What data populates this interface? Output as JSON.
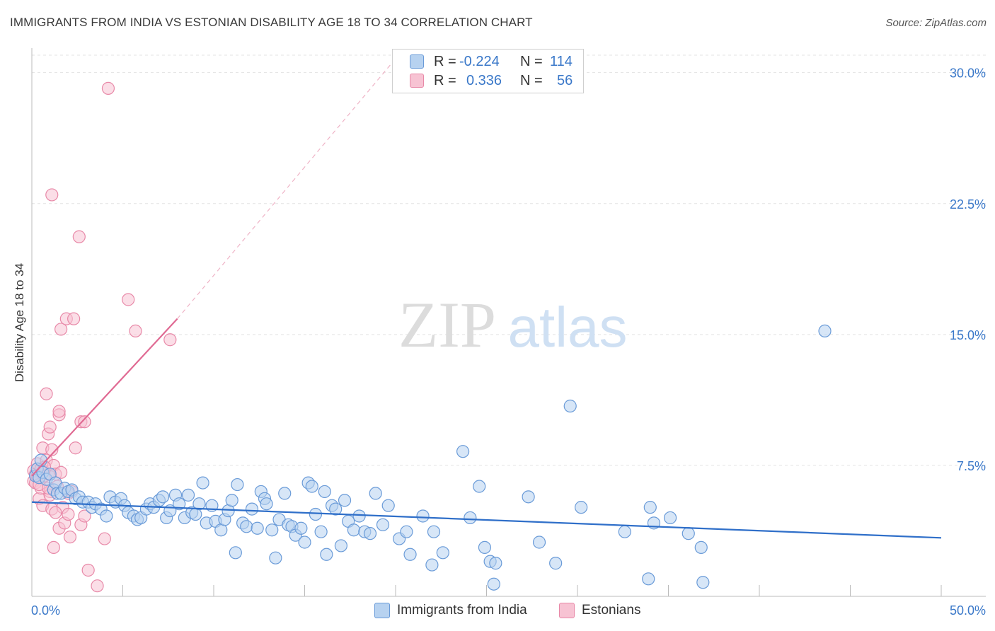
{
  "header": {
    "title": "IMMIGRANTS FROM INDIA VS ESTONIAN DISABILITY AGE 18 TO 34 CORRELATION CHART",
    "source": "Source: ZipAtlas.com"
  },
  "watermark": {
    "zip": "ZIP",
    "atlas": "atlas"
  },
  "legend": {
    "r_label": "R =",
    "n_label": "N =",
    "rows": [
      {
        "r": "-0.224",
        "n": "114"
      },
      {
        "r": "0.336",
        "n": "56"
      }
    ]
  },
  "bottom_legend": [
    "Immigrants from India",
    "Estonians"
  ],
  "colors": {
    "india_fill": "#b7d2f0",
    "india_stroke": "#6a9bd8",
    "india_line": "#2f6fc9",
    "est_fill": "#f7c3d3",
    "est_stroke": "#e889a8",
    "est_line": "#e06a93",
    "axis_label": "#3a78c9"
  },
  "chart_data": {
    "type": "scatter",
    "title": "IMMIGRANTS FROM INDIA VS ESTONIAN DISABILITY AGE 18 TO 34 CORRELATION CHART",
    "xlabel": "",
    "ylabel": "Disability Age 18 to 34",
    "xlim": [
      0,
      50
    ],
    "ylim": [
      0,
      31
    ],
    "x_tick_labels": [
      "0.0%",
      "50.0%"
    ],
    "y_ticks": [
      7.5,
      15.0,
      22.5,
      30.0
    ],
    "y_tick_labels": [
      "7.5%",
      "15.0%",
      "22.5%",
      "30.0%"
    ],
    "grid": true,
    "legend_position": "top-center",
    "series": [
      {
        "name": "Immigrants from India",
        "r": -0.224,
        "n": 114,
        "trend": {
          "x": [
            0,
            50
          ],
          "y": [
            5.4,
            3.35
          ]
        },
        "points": [
          [
            0.2,
            6.9
          ],
          [
            0.3,
            7.3
          ],
          [
            0.4,
            6.8
          ],
          [
            0.6,
            7.1
          ],
          [
            0.8,
            6.7
          ],
          [
            1.0,
            7.0
          ],
          [
            1.2,
            6.1
          ],
          [
            1.3,
            6.5
          ],
          [
            1.4,
            5.9
          ],
          [
            1.6,
            5.9
          ],
          [
            1.8,
            6.2
          ],
          [
            2.0,
            6.0
          ],
          [
            2.2,
            6.1
          ],
          [
            2.4,
            5.6
          ],
          [
            2.6,
            5.7
          ],
          [
            2.8,
            5.4
          ],
          [
            3.1,
            5.4
          ],
          [
            3.3,
            5.1
          ],
          [
            3.5,
            5.3
          ],
          [
            3.8,
            5.0
          ],
          [
            4.1,
            4.6
          ],
          [
            4.3,
            5.7
          ],
          [
            4.6,
            5.4
          ],
          [
            4.9,
            5.6
          ],
          [
            5.1,
            5.2
          ],
          [
            5.3,
            4.8
          ],
          [
            5.6,
            4.6
          ],
          [
            5.8,
            4.4
          ],
          [
            6.0,
            4.5
          ],
          [
            6.3,
            5.0
          ],
          [
            6.5,
            5.3
          ],
          [
            6.7,
            5.1
          ],
          [
            7.0,
            5.5
          ],
          [
            7.2,
            5.7
          ],
          [
            7.4,
            4.5
          ],
          [
            7.6,
            4.9
          ],
          [
            7.9,
            5.8
          ],
          [
            8.1,
            5.3
          ],
          [
            8.4,
            4.5
          ],
          [
            8.6,
            5.8
          ],
          [
            8.8,
            4.8
          ],
          [
            9.0,
            4.7
          ],
          [
            9.2,
            5.3
          ],
          [
            9.4,
            6.5
          ],
          [
            9.6,
            4.2
          ],
          [
            9.9,
            5.2
          ],
          [
            10.1,
            4.3
          ],
          [
            10.4,
            3.8
          ],
          [
            10.6,
            4.4
          ],
          [
            10.8,
            4.9
          ],
          [
            11.0,
            5.5
          ],
          [
            11.3,
            6.4
          ],
          [
            11.2,
            2.5
          ],
          [
            11.6,
            4.2
          ],
          [
            11.8,
            4.0
          ],
          [
            12.1,
            5.0
          ],
          [
            12.4,
            3.9
          ],
          [
            12.6,
            6.0
          ],
          [
            12.8,
            5.6
          ],
          [
            12.9,
            5.3
          ],
          [
            13.2,
            3.8
          ],
          [
            13.4,
            2.2
          ],
          [
            13.6,
            4.4
          ],
          [
            13.9,
            5.9
          ],
          [
            14.1,
            4.1
          ],
          [
            14.3,
            4.0
          ],
          [
            14.5,
            3.5
          ],
          [
            14.8,
            3.9
          ],
          [
            15.0,
            3.1
          ],
          [
            15.2,
            6.5
          ],
          [
            15.4,
            6.3
          ],
          [
            15.6,
            4.7
          ],
          [
            15.9,
            3.7
          ],
          [
            16.1,
            6.0
          ],
          [
            16.2,
            2.4
          ],
          [
            16.5,
            5.2
          ],
          [
            16.7,
            5.0
          ],
          [
            17.0,
            2.9
          ],
          [
            17.2,
            5.5
          ],
          [
            17.4,
            4.3
          ],
          [
            17.7,
            3.8
          ],
          [
            18.0,
            4.6
          ],
          [
            18.3,
            3.7
          ],
          [
            18.6,
            3.6
          ],
          [
            18.9,
            5.9
          ],
          [
            19.3,
            4.1
          ],
          [
            19.6,
            5.2
          ],
          [
            20.2,
            3.3
          ],
          [
            20.6,
            3.7
          ],
          [
            20.8,
            2.4
          ],
          [
            21.5,
            4.6
          ],
          [
            22.0,
            1.8
          ],
          [
            22.1,
            3.7
          ],
          [
            22.6,
            2.5
          ],
          [
            23.7,
            8.3
          ],
          [
            24.1,
            4.5
          ],
          [
            24.6,
            6.3
          ],
          [
            24.9,
            2.8
          ],
          [
            25.2,
            2.0
          ],
          [
            25.5,
            1.9
          ],
          [
            25.4,
            0.7
          ],
          [
            27.3,
            5.7
          ],
          [
            27.9,
            3.1
          ],
          [
            28.8,
            1.9
          ],
          [
            29.6,
            10.9
          ],
          [
            30.2,
            5.1
          ],
          [
            32.6,
            3.7
          ],
          [
            33.9,
            1.0
          ],
          [
            34.0,
            5.1
          ],
          [
            34.2,
            4.2
          ],
          [
            35.1,
            4.5
          ],
          [
            36.1,
            3.6
          ],
          [
            36.8,
            2.8
          ],
          [
            36.9,
            0.8
          ],
          [
            43.6,
            15.2
          ],
          [
            0.5,
            7.8
          ]
        ]
      },
      {
        "name": "Estonians",
        "r": 0.336,
        "n": 56,
        "trend": {
          "x": [
            0,
            8
          ],
          "y": [
            6.9,
            15.9
          ]
        },
        "trend_extension": {
          "x": [
            8,
            20
          ],
          "y": [
            15.9,
            30.8
          ]
        },
        "points": [
          [
            0.1,
            7.2
          ],
          [
            0.1,
            6.6
          ],
          [
            0.2,
            7.0
          ],
          [
            0.2,
            6.5
          ],
          [
            0.3,
            7.6
          ],
          [
            0.3,
            6.9
          ],
          [
            0.4,
            5.6
          ],
          [
            0.5,
            7.3
          ],
          [
            0.5,
            6.2
          ],
          [
            0.6,
            8.5
          ],
          [
            0.6,
            5.2
          ],
          [
            0.7,
            6.9
          ],
          [
            0.8,
            11.6
          ],
          [
            0.8,
            7.8
          ],
          [
            0.9,
            9.3
          ],
          [
            0.9,
            7.0
          ],
          [
            1.0,
            9.7
          ],
          [
            1.0,
            6.0
          ],
          [
            1.0,
            5.8
          ],
          [
            1.1,
            8.4
          ],
          [
            1.1,
            5.0
          ],
          [
            1.1,
            23.0
          ],
          [
            1.2,
            7.5
          ],
          [
            1.2,
            2.8
          ],
          [
            1.3,
            7.0
          ],
          [
            1.4,
            6.3
          ],
          [
            1.5,
            3.9
          ],
          [
            1.5,
            10.4
          ],
          [
            1.5,
            10.6
          ],
          [
            1.6,
            15.3
          ],
          [
            1.7,
            5.1
          ],
          [
            1.8,
            4.2
          ],
          [
            1.9,
            15.9
          ],
          [
            2.0,
            4.7
          ],
          [
            2.1,
            3.4
          ],
          [
            2.2,
            6.0
          ],
          [
            2.3,
            15.9
          ],
          [
            2.4,
            8.5
          ],
          [
            2.6,
            20.6
          ],
          [
            2.7,
            10.0
          ],
          [
            2.7,
            4.1
          ],
          [
            2.9,
            10.0
          ],
          [
            2.9,
            4.6
          ],
          [
            3.1,
            1.5
          ],
          [
            3.6,
            0.6
          ],
          [
            4.0,
            3.3
          ],
          [
            4.2,
            29.1
          ],
          [
            5.3,
            17.0
          ],
          [
            5.7,
            15.2
          ],
          [
            7.6,
            14.7
          ],
          [
            1.3,
            4.8
          ],
          [
            0.4,
            6.4
          ],
          [
            0.7,
            7.4
          ],
          [
            0.9,
            6.2
          ],
          [
            1.6,
            7.1
          ],
          [
            2.0,
            5.9
          ]
        ]
      }
    ]
  }
}
